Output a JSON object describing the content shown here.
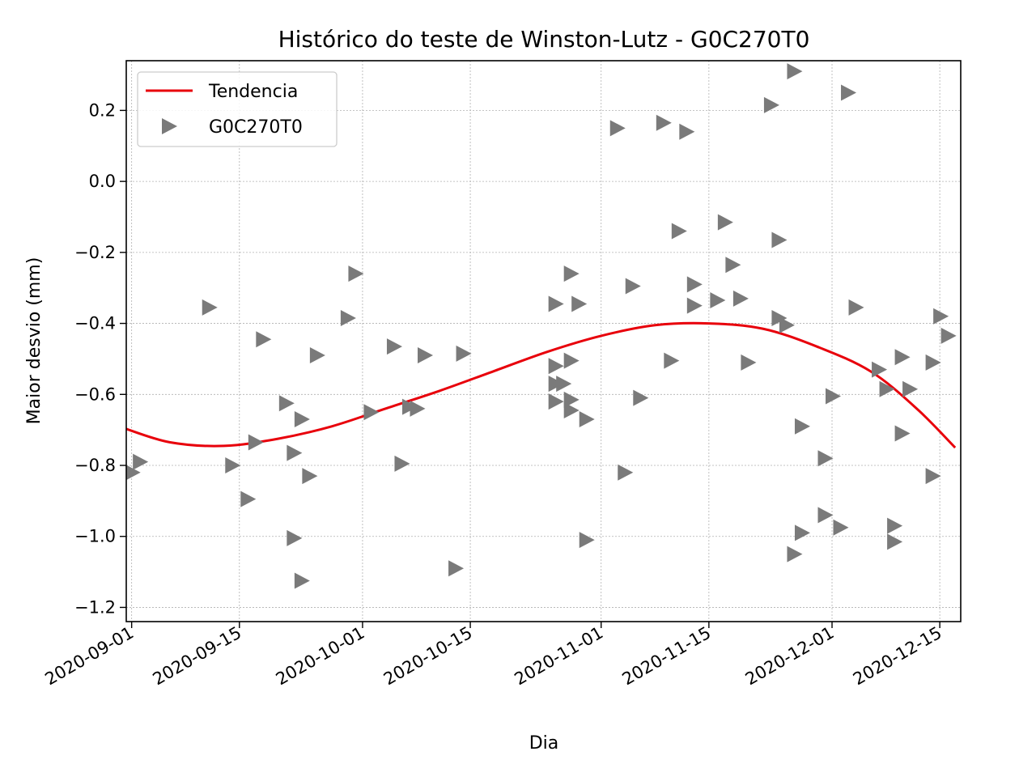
{
  "chart_data": {
    "type": "scatter",
    "title": "Histórico do teste de Winston-Lutz - G0C270T0",
    "xlabel": "Dia",
    "ylabel": "Maior desvio (mm)",
    "xlim": [
      "2020-08-31",
      "2020-12-17"
    ],
    "ylim": [
      -1.24,
      0.34
    ],
    "x_ticks": [
      "2020-09-01",
      "2020-09-15",
      "2020-10-01",
      "2020-10-15",
      "2020-11-01",
      "2020-11-15",
      "2020-12-01",
      "2020-12-15"
    ],
    "y_ticks": [
      0.2,
      0.0,
      -0.2,
      -0.4,
      -0.6,
      -0.8,
      -1.0,
      -1.2
    ],
    "y_tick_labels": [
      "0.2",
      "0.0",
      "−0.2",
      "−0.4",
      "−0.6",
      "−0.8",
      "−1.0",
      "−1.2"
    ],
    "grid": true,
    "legend": {
      "placement": "top-left"
    },
    "series": [
      {
        "name": "Tendencia",
        "kind": "line",
        "color": "#e8000b",
        "points": [
          {
            "x": "2020-08-31",
            "y": -0.695
          },
          {
            "x": "2020-09-06",
            "y": -0.735
          },
          {
            "x": "2020-09-13",
            "y": -0.745
          },
          {
            "x": "2020-09-20",
            "y": -0.725
          },
          {
            "x": "2020-09-27",
            "y": -0.69
          },
          {
            "x": "2020-10-04",
            "y": -0.64
          },
          {
            "x": "2020-10-11",
            "y": -0.59
          },
          {
            "x": "2020-10-18",
            "y": -0.535
          },
          {
            "x": "2020-10-25",
            "y": -0.48
          },
          {
            "x": "2020-11-01",
            "y": -0.435
          },
          {
            "x": "2020-11-08",
            "y": -0.405
          },
          {
            "x": "2020-11-15",
            "y": -0.4
          },
          {
            "x": "2020-11-22",
            "y": -0.415
          },
          {
            "x": "2020-11-29",
            "y": -0.465
          },
          {
            "x": "2020-12-06",
            "y": -0.535
          },
          {
            "x": "2020-12-12",
            "y": -0.64
          },
          {
            "x": "2020-12-17",
            "y": -0.75
          }
        ]
      },
      {
        "name": "G0C270T0",
        "kind": "scatter",
        "color": "#7a7a7a",
        "marker": "triangle-right",
        "points": [
          {
            "x": "2020-09-01",
            "y": -0.82
          },
          {
            "x": "2020-09-02",
            "y": -0.79
          },
          {
            "x": "2020-09-11",
            "y": -0.355
          },
          {
            "x": "2020-09-14",
            "y": -0.8
          },
          {
            "x": "2020-09-16",
            "y": -0.895
          },
          {
            "x": "2020-09-17",
            "y": -0.735
          },
          {
            "x": "2020-09-18",
            "y": -0.445
          },
          {
            "x": "2020-09-21",
            "y": -0.625
          },
          {
            "x": "2020-09-22",
            "y": -0.765
          },
          {
            "x": "2020-09-22",
            "y": -1.005
          },
          {
            "x": "2020-09-23",
            "y": -0.67
          },
          {
            "x": "2020-09-23",
            "y": -1.125
          },
          {
            "x": "2020-09-24",
            "y": -0.83
          },
          {
            "x": "2020-09-25",
            "y": -0.49
          },
          {
            "x": "2020-09-29",
            "y": -0.385
          },
          {
            "x": "2020-09-30",
            "y": -0.26
          },
          {
            "x": "2020-10-02",
            "y": -0.65
          },
          {
            "x": "2020-10-05",
            "y": -0.465
          },
          {
            "x": "2020-10-06",
            "y": -0.795
          },
          {
            "x": "2020-10-07",
            "y": -0.635
          },
          {
            "x": "2020-10-08",
            "y": -0.64
          },
          {
            "x": "2020-10-09",
            "y": -0.49
          },
          {
            "x": "2020-10-13",
            "y": -1.09
          },
          {
            "x": "2020-10-14",
            "y": -0.485
          },
          {
            "x": "2020-10-26",
            "y": -0.345
          },
          {
            "x": "2020-10-26",
            "y": -0.52
          },
          {
            "x": "2020-10-26",
            "y": -0.57
          },
          {
            "x": "2020-10-26",
            "y": -0.62
          },
          {
            "x": "2020-10-27",
            "y": -0.57
          },
          {
            "x": "2020-10-28",
            "y": -0.26
          },
          {
            "x": "2020-10-28",
            "y": -0.505
          },
          {
            "x": "2020-10-28",
            "y": -0.615
          },
          {
            "x": "2020-10-28",
            "y": -0.645
          },
          {
            "x": "2020-10-29",
            "y": -0.345
          },
          {
            "x": "2020-10-30",
            "y": -0.67
          },
          {
            "x": "2020-10-30",
            "y": -1.01
          },
          {
            "x": "2020-11-03",
            "y": 0.15
          },
          {
            "x": "2020-11-04",
            "y": -0.82
          },
          {
            "x": "2020-11-05",
            "y": -0.295
          },
          {
            "x": "2020-11-06",
            "y": -0.61
          },
          {
            "x": "2020-11-09",
            "y": 0.165
          },
          {
            "x": "2020-11-10",
            "y": -0.505
          },
          {
            "x": "2020-11-11",
            "y": -0.14
          },
          {
            "x": "2020-11-12",
            "y": 0.14
          },
          {
            "x": "2020-11-13",
            "y": -0.29
          },
          {
            "x": "2020-11-13",
            "y": -0.35
          },
          {
            "x": "2020-11-16",
            "y": -0.335
          },
          {
            "x": "2020-11-17",
            "y": -0.115
          },
          {
            "x": "2020-11-18",
            "y": -0.235
          },
          {
            "x": "2020-11-19",
            "y": -0.33
          },
          {
            "x": "2020-11-20",
            "y": -0.51
          },
          {
            "x": "2020-11-23",
            "y": 0.215
          },
          {
            "x": "2020-11-24",
            "y": -0.165
          },
          {
            "x": "2020-11-24",
            "y": -0.385
          },
          {
            "x": "2020-11-25",
            "y": -0.405
          },
          {
            "x": "2020-11-26",
            "y": 0.31
          },
          {
            "x": "2020-11-26",
            "y": -1.05
          },
          {
            "x": "2020-11-27",
            "y": -0.69
          },
          {
            "x": "2020-11-27",
            "y": -0.99
          },
          {
            "x": "2020-11-30",
            "y": -0.78
          },
          {
            "x": "2020-11-30",
            "y": -0.94
          },
          {
            "x": "2020-12-01",
            "y": -0.605
          },
          {
            "x": "2020-12-02",
            "y": -0.975
          },
          {
            "x": "2020-12-03",
            "y": 0.25
          },
          {
            "x": "2020-12-04",
            "y": -0.355
          },
          {
            "x": "2020-12-07",
            "y": -0.53
          },
          {
            "x": "2020-12-08",
            "y": -0.585
          },
          {
            "x": "2020-12-09",
            "y": -0.97
          },
          {
            "x": "2020-12-09",
            "y": -1.015
          },
          {
            "x": "2020-12-10",
            "y": -0.495
          },
          {
            "x": "2020-12-10",
            "y": -0.71
          },
          {
            "x": "2020-12-11",
            "y": -0.585
          },
          {
            "x": "2020-12-14",
            "y": -0.51
          },
          {
            "x": "2020-12-14",
            "y": -0.83
          },
          {
            "x": "2020-12-15",
            "y": -0.38
          },
          {
            "x": "2020-12-16",
            "y": -0.435
          }
        ]
      }
    ]
  }
}
